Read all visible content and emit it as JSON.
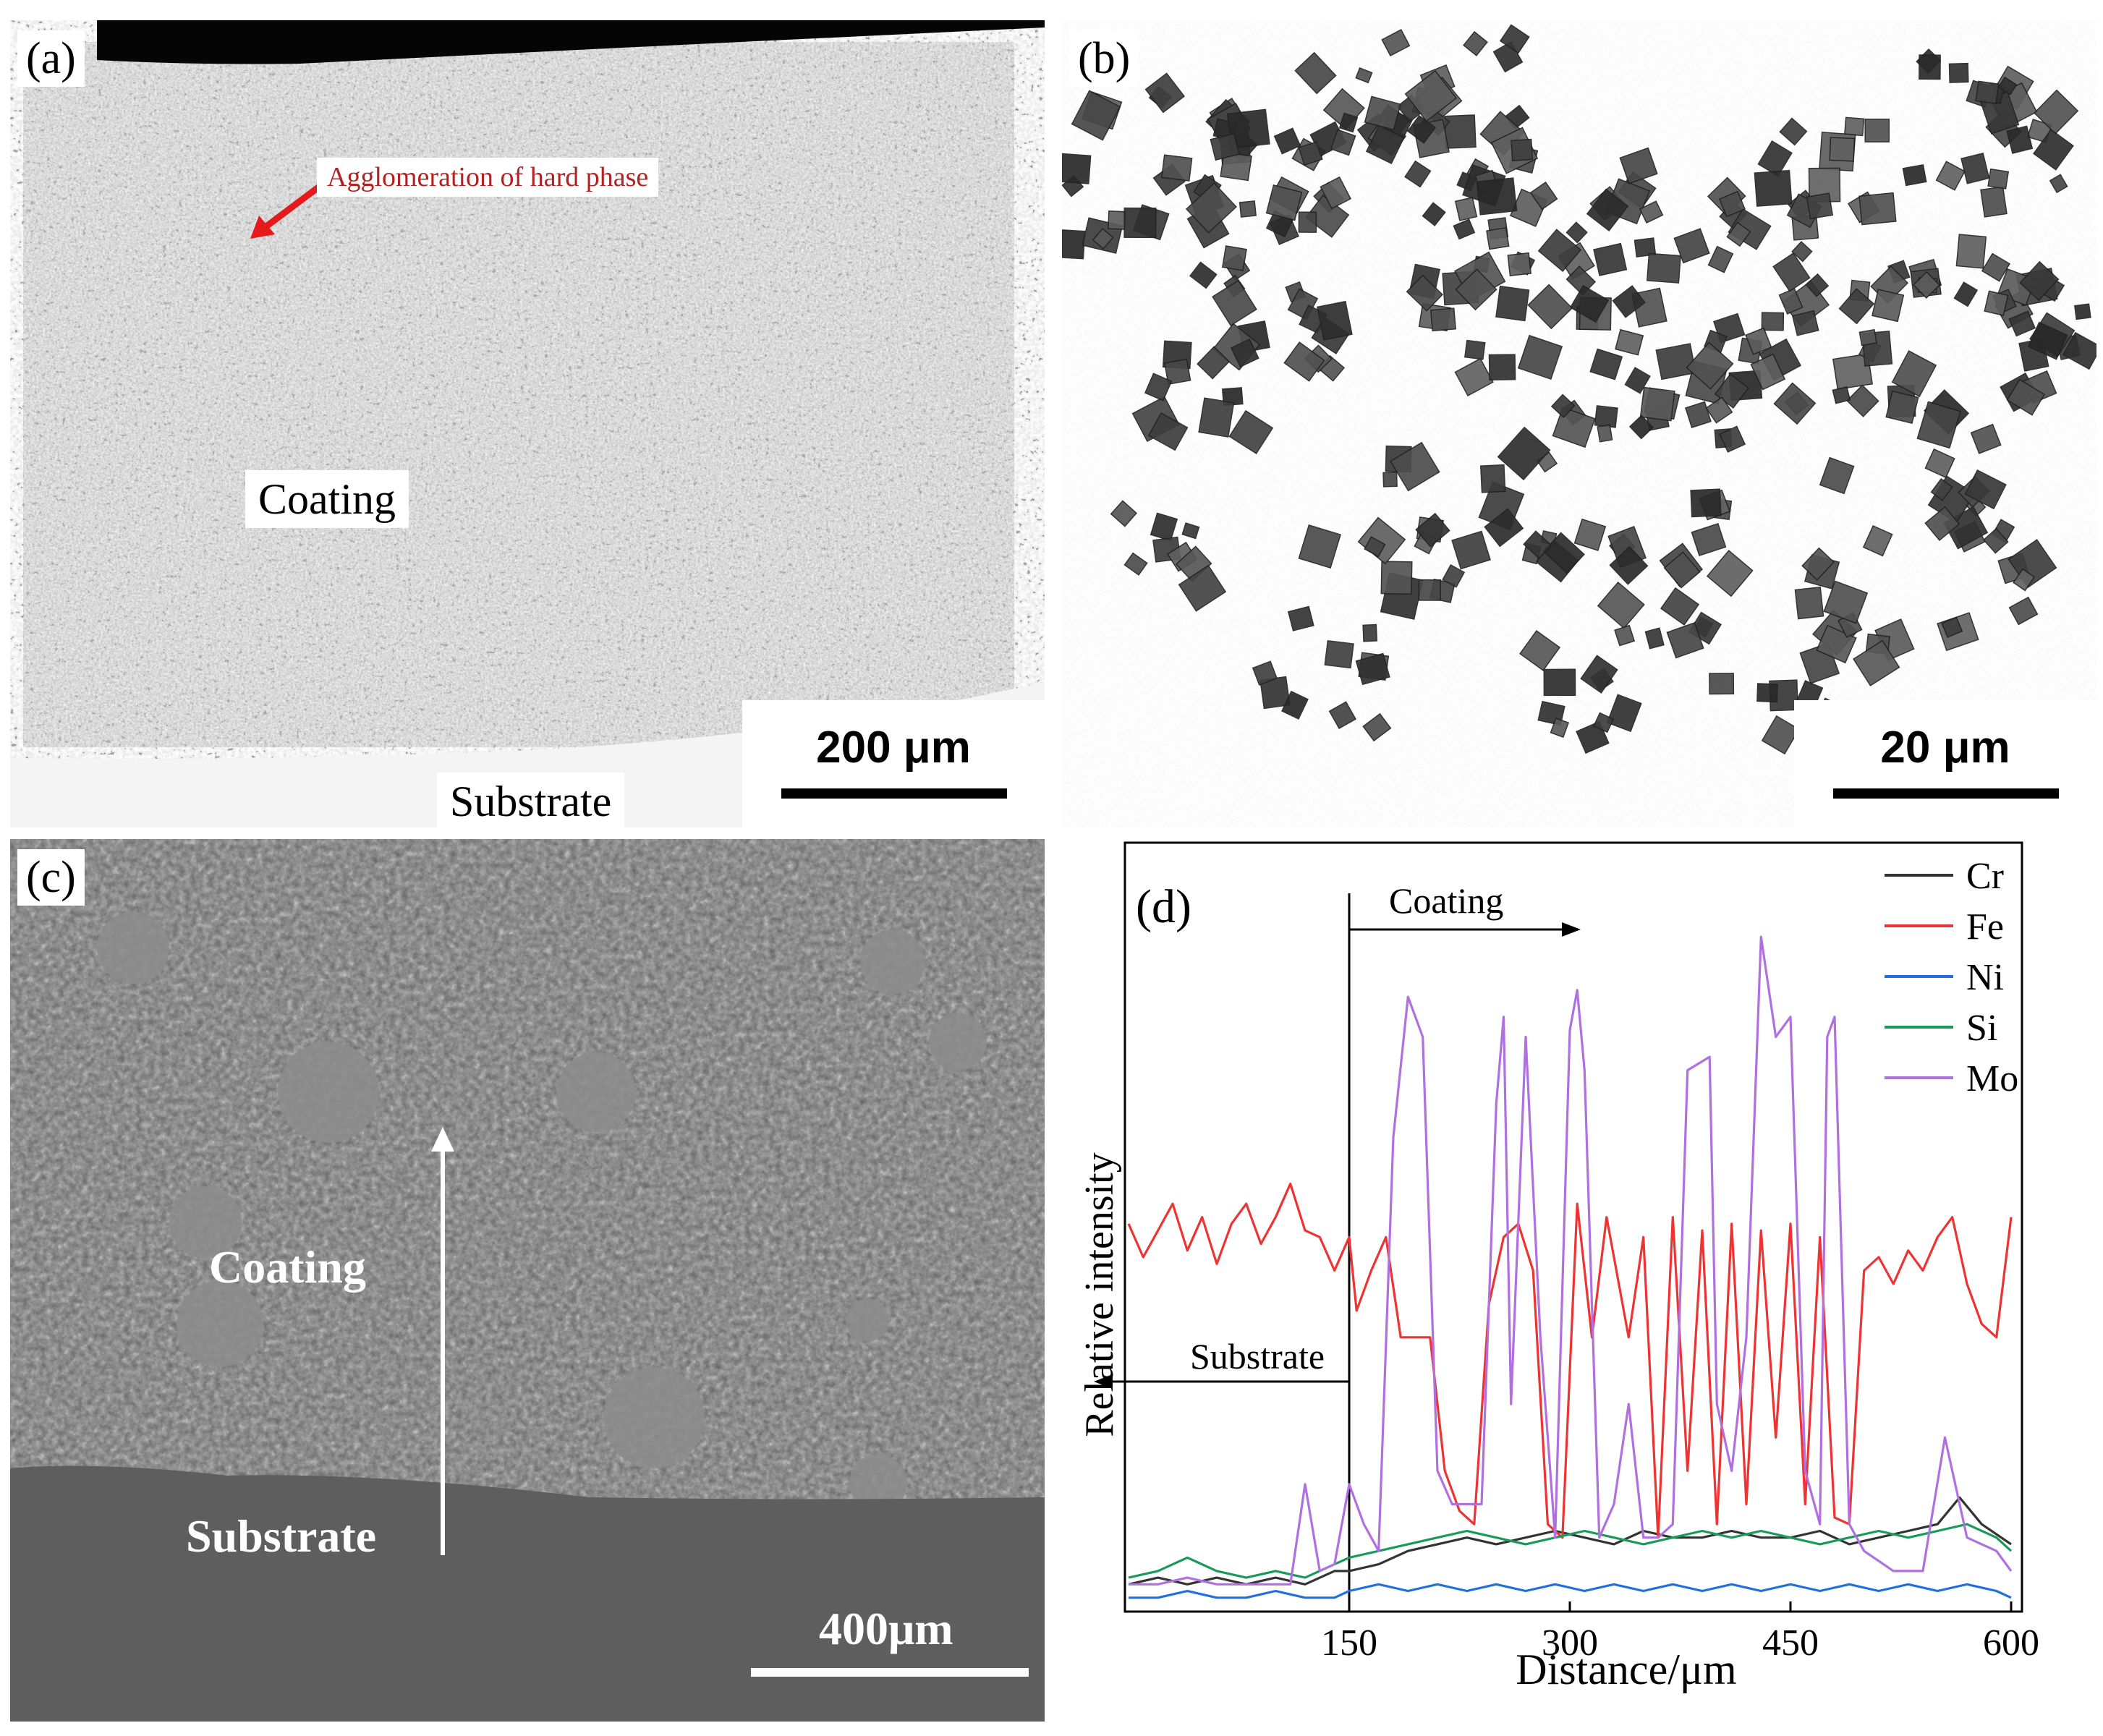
{
  "panels": {
    "a": {
      "label": "(a)",
      "annotation": "Agglomeration of hard phase",
      "region_label": "Coating",
      "bottom_label": "Substrate",
      "scale_bar": "200 μm",
      "colors": {
        "annotation_text": "#b22222",
        "arrow": "#e41a1c"
      }
    },
    "b": {
      "label": "(b)",
      "scale_bar": "20 μm"
    },
    "c": {
      "label": "(c)",
      "region_label": "Coating",
      "bottom_label": "Substrate",
      "scale_bar": "400μm"
    },
    "d": {
      "label": "(d)",
      "coating_annotation": "Coating",
      "substrate_annotation": "Substrate"
    }
  },
  "chart_data": {
    "type": "line",
    "title": "",
    "xlabel": "Distance/μm",
    "ylabel": "Relative intensity",
    "xlim": [
      0,
      600
    ],
    "ylim": [
      0,
      100
    ],
    "xticks": [
      150,
      300,
      450,
      600
    ],
    "legend_position": "top-right",
    "boundary_x": 150,
    "series": [
      {
        "name": "Cr",
        "color": "#333333",
        "points": [
          [
            0,
            3
          ],
          [
            20,
            4
          ],
          [
            40,
            3
          ],
          [
            60,
            4
          ],
          [
            80,
            3
          ],
          [
            100,
            4
          ],
          [
            120,
            3
          ],
          [
            140,
            5
          ],
          [
            150,
            5
          ],
          [
            170,
            6
          ],
          [
            190,
            8
          ],
          [
            210,
            9
          ],
          [
            230,
            10
          ],
          [
            250,
            9
          ],
          [
            270,
            10
          ],
          [
            290,
            11
          ],
          [
            310,
            10
          ],
          [
            330,
            9
          ],
          [
            350,
            11
          ],
          [
            370,
            10
          ],
          [
            390,
            10
          ],
          [
            410,
            11
          ],
          [
            430,
            10
          ],
          [
            450,
            10
          ],
          [
            470,
            11
          ],
          [
            490,
            9
          ],
          [
            510,
            10
          ],
          [
            530,
            11
          ],
          [
            550,
            12
          ],
          [
            565,
            16
          ],
          [
            580,
            12
          ],
          [
            600,
            9
          ]
        ]
      },
      {
        "name": "Fe",
        "color": "#ee3333",
        "points": [
          [
            0,
            57
          ],
          [
            10,
            52
          ],
          [
            20,
            56
          ],
          [
            30,
            60
          ],
          [
            40,
            53
          ],
          [
            50,
            58
          ],
          [
            60,
            51
          ],
          [
            70,
            57
          ],
          [
            80,
            60
          ],
          [
            90,
            54
          ],
          [
            100,
            58
          ],
          [
            110,
            63
          ],
          [
            120,
            56
          ],
          [
            130,
            55
          ],
          [
            140,
            50
          ],
          [
            150,
            55
          ],
          [
            155,
            44
          ],
          [
            165,
            50
          ],
          [
            175,
            55
          ],
          [
            185,
            40
          ],
          [
            195,
            40
          ],
          [
            205,
            40
          ],
          [
            215,
            20
          ],
          [
            225,
            14
          ],
          [
            235,
            12
          ],
          [
            245,
            45
          ],
          [
            255,
            55
          ],
          [
            265,
            57
          ],
          [
            275,
            50
          ],
          [
            285,
            12
          ],
          [
            295,
            10
          ],
          [
            305,
            60
          ],
          [
            315,
            40
          ],
          [
            325,
            58
          ],
          [
            340,
            40
          ],
          [
            350,
            55
          ],
          [
            360,
            10
          ],
          [
            370,
            58
          ],
          [
            380,
            20
          ],
          [
            390,
            56
          ],
          [
            400,
            12
          ],
          [
            410,
            57
          ],
          [
            420,
            15
          ],
          [
            430,
            56
          ],
          [
            440,
            25
          ],
          [
            450,
            57
          ],
          [
            460,
            15
          ],
          [
            470,
            55
          ],
          [
            480,
            13
          ],
          [
            490,
            12
          ],
          [
            500,
            50
          ],
          [
            510,
            52
          ],
          [
            520,
            48
          ],
          [
            530,
            53
          ],
          [
            540,
            50
          ],
          [
            550,
            55
          ],
          [
            560,
            58
          ],
          [
            570,
            48
          ],
          [
            580,
            42
          ],
          [
            590,
            40
          ],
          [
            600,
            58
          ]
        ]
      },
      {
        "name": "Ni",
        "color": "#1f6fe0",
        "points": [
          [
            0,
            1
          ],
          [
            20,
            1
          ],
          [
            40,
            2
          ],
          [
            60,
            1
          ],
          [
            80,
            1
          ],
          [
            100,
            2
          ],
          [
            120,
            1
          ],
          [
            140,
            1
          ],
          [
            150,
            2
          ],
          [
            170,
            3
          ],
          [
            190,
            2
          ],
          [
            210,
            3
          ],
          [
            230,
            2
          ],
          [
            250,
            3
          ],
          [
            270,
            2
          ],
          [
            290,
            3
          ],
          [
            310,
            2
          ],
          [
            330,
            3
          ],
          [
            350,
            2
          ],
          [
            370,
            3
          ],
          [
            390,
            2
          ],
          [
            410,
            3
          ],
          [
            430,
            2
          ],
          [
            450,
            3
          ],
          [
            470,
            2
          ],
          [
            490,
            3
          ],
          [
            510,
            2
          ],
          [
            530,
            3
          ],
          [
            550,
            2
          ],
          [
            570,
            3
          ],
          [
            590,
            2
          ],
          [
            600,
            1
          ]
        ]
      },
      {
        "name": "Si",
        "color": "#1a9a5a",
        "points": [
          [
            0,
            4
          ],
          [
            20,
            5
          ],
          [
            40,
            7
          ],
          [
            60,
            5
          ],
          [
            80,
            4
          ],
          [
            100,
            5
          ],
          [
            120,
            4
          ],
          [
            140,
            6
          ],
          [
            150,
            7
          ],
          [
            170,
            8
          ],
          [
            190,
            9
          ],
          [
            210,
            10
          ],
          [
            230,
            11
          ],
          [
            250,
            10
          ],
          [
            270,
            9
          ],
          [
            290,
            10
          ],
          [
            310,
            11
          ],
          [
            330,
            10
          ],
          [
            350,
            9
          ],
          [
            370,
            10
          ],
          [
            390,
            11
          ],
          [
            410,
            10
          ],
          [
            430,
            11
          ],
          [
            450,
            10
          ],
          [
            470,
            9
          ],
          [
            490,
            10
          ],
          [
            510,
            11
          ],
          [
            530,
            10
          ],
          [
            550,
            11
          ],
          [
            570,
            12
          ],
          [
            590,
            10
          ],
          [
            600,
            8
          ]
        ]
      },
      {
        "name": "Mo",
        "color": "#b070e0",
        "points": [
          [
            0,
            3
          ],
          [
            20,
            3
          ],
          [
            40,
            4
          ],
          [
            60,
            3
          ],
          [
            80,
            3
          ],
          [
            100,
            3
          ],
          [
            110,
            3
          ],
          [
            120,
            18
          ],
          [
            130,
            5
          ],
          [
            140,
            6
          ],
          [
            150,
            18
          ],
          [
            160,
            12
          ],
          [
            170,
            8
          ],
          [
            180,
            70
          ],
          [
            190,
            91
          ],
          [
            200,
            85
          ],
          [
            210,
            20
          ],
          [
            220,
            15
          ],
          [
            240,
            15
          ],
          [
            250,
            75
          ],
          [
            255,
            88
          ],
          [
            260,
            30
          ],
          [
            270,
            85
          ],
          [
            280,
            40
          ],
          [
            290,
            10
          ],
          [
            300,
            86
          ],
          [
            305,
            92
          ],
          [
            310,
            80
          ],
          [
            320,
            10
          ],
          [
            330,
            15
          ],
          [
            340,
            30
          ],
          [
            350,
            10
          ],
          [
            360,
            10
          ],
          [
            370,
            12
          ],
          [
            380,
            80
          ],
          [
            395,
            82
          ],
          [
            400,
            30
          ],
          [
            410,
            20
          ],
          [
            420,
            40
          ],
          [
            430,
            100
          ],
          [
            440,
            85
          ],
          [
            450,
            88
          ],
          [
            460,
            20
          ],
          [
            470,
            12
          ],
          [
            475,
            85
          ],
          [
            480,
            88
          ],
          [
            490,
            12
          ],
          [
            500,
            8
          ],
          [
            520,
            5
          ],
          [
            540,
            5
          ],
          [
            555,
            25
          ],
          [
            570,
            10
          ],
          [
            590,
            8
          ],
          [
            600,
            5
          ]
        ]
      }
    ]
  }
}
